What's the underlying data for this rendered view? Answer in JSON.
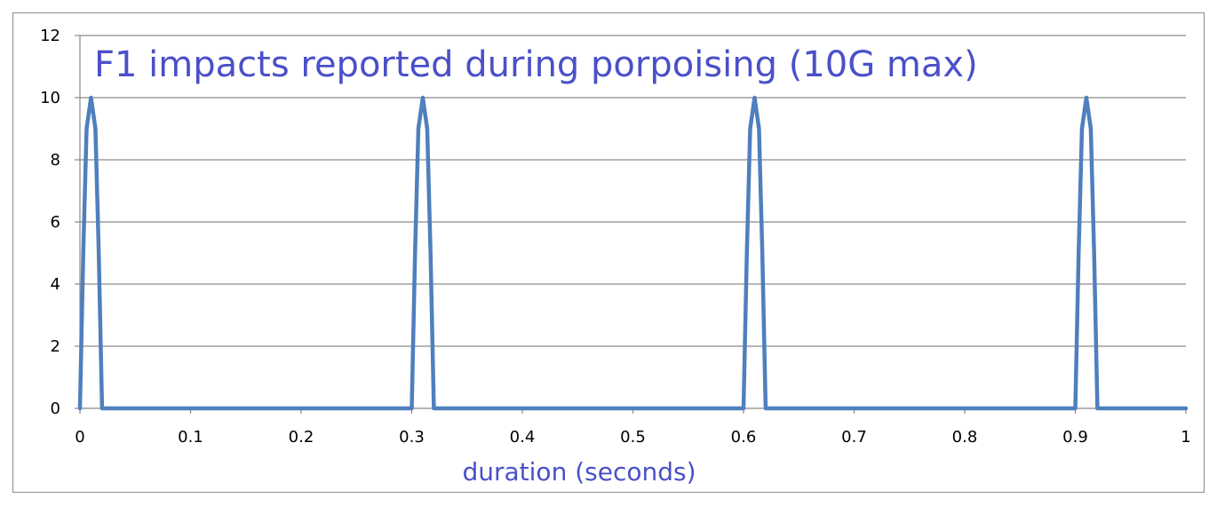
{
  "chart_data": {
    "type": "line",
    "title": "F1 impacts reported during porpoising (10G max)",
    "xlabel": "duration (seconds)",
    "ylabel": "",
    "xlim": [
      0,
      1
    ],
    "ylim": [
      0,
      12
    ],
    "x_ticks": [
      "0",
      "0.1",
      "0.2",
      "0.3",
      "0.4",
      "0.5",
      "0.6",
      "0.7",
      "0.8",
      "0.9",
      "1"
    ],
    "y_ticks": [
      "0",
      "2",
      "4",
      "6",
      "8",
      "10",
      "12"
    ],
    "grid": "horizontal",
    "legend": "none",
    "series": [
      {
        "color": "#4f7fbd",
        "points": [
          {
            "x": 0.0,
            "y": 0
          },
          {
            "x": 0.003,
            "y": 5
          },
          {
            "x": 0.006,
            "y": 9
          },
          {
            "x": 0.01,
            "y": 10
          },
          {
            "x": 0.014,
            "y": 9
          },
          {
            "x": 0.017,
            "y": 5
          },
          {
            "x": 0.02,
            "y": 0
          },
          {
            "x": 0.3,
            "y": 0
          },
          {
            "x": 0.303,
            "y": 5
          },
          {
            "x": 0.306,
            "y": 9
          },
          {
            "x": 0.31,
            "y": 10
          },
          {
            "x": 0.314,
            "y": 9
          },
          {
            "x": 0.317,
            "y": 5
          },
          {
            "x": 0.32,
            "y": 0
          },
          {
            "x": 0.6,
            "y": 0
          },
          {
            "x": 0.603,
            "y": 5
          },
          {
            "x": 0.606,
            "y": 9
          },
          {
            "x": 0.61,
            "y": 10
          },
          {
            "x": 0.614,
            "y": 9
          },
          {
            "x": 0.617,
            "y": 5
          },
          {
            "x": 0.62,
            "y": 0
          },
          {
            "x": 0.9,
            "y": 0
          },
          {
            "x": 0.903,
            "y": 5
          },
          {
            "x": 0.906,
            "y": 9
          },
          {
            "x": 0.91,
            "y": 10
          },
          {
            "x": 0.914,
            "y": 9
          },
          {
            "x": 0.917,
            "y": 5
          },
          {
            "x": 0.92,
            "y": 0
          },
          {
            "x": 1.0,
            "y": 0
          }
        ]
      }
    ]
  }
}
